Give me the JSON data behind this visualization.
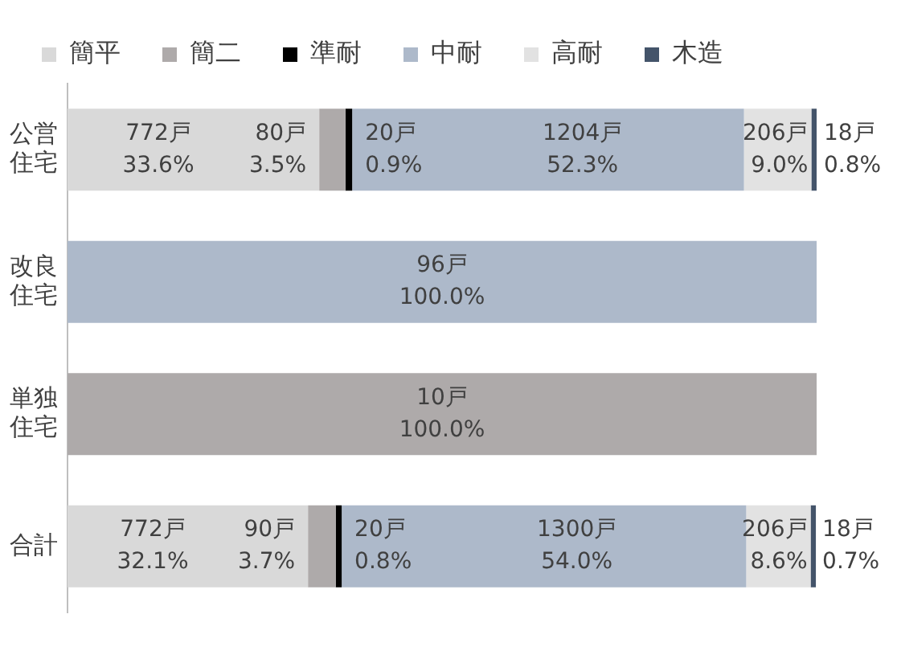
{
  "chart_data": {
    "type": "bar",
    "orientation": "horizontal",
    "stacked": true,
    "categories": [
      "公営住宅",
      "改良住宅",
      "単独住宅",
      "合計"
    ],
    "xlim": [
      0,
      100
    ],
    "tick_labels": "y",
    "grid": false,
    "legend": "top",
    "series": [
      {
        "name": "簡平",
        "color": "#d9d9d9",
        "values": [
          33.6,
          null,
          null,
          32.1
        ],
        "value_labels": [
          "772戸\n33.6%",
          null,
          null,
          "772戸\n32.1%"
        ]
      },
      {
        "name": "簡二",
        "color": "#aeaaaa",
        "values": [
          3.5,
          null,
          100.0,
          3.7
        ],
        "value_labels": [
          "80戸\n3.5%",
          null,
          "10戸\n100.0%",
          "90戸\n3.7%"
        ]
      },
      {
        "name": "準耐",
        "color": "#000000",
        "values": [
          0.9,
          null,
          null,
          0.8
        ],
        "value_labels": [
          "20戸\n0.9%",
          null,
          null,
          "20戸\n0.8%"
        ]
      },
      {
        "name": "中耐",
        "color": "#adb9ca",
        "values": [
          52.3,
          100.0,
          null,
          54.0
        ],
        "value_labels": [
          "1204戸\n52.3%",
          "96戸\n100.0%",
          null,
          "1300戸\n54.0%"
        ]
      },
      {
        "name": "高耐",
        "color": "#e2e2e2",
        "values": [
          9.0,
          null,
          null,
          8.6
        ],
        "value_labels": [
          "206戸\n9.0%",
          null,
          null,
          "206戸\n8.6%"
        ]
      },
      {
        "name": "木造",
        "color": "#44546a",
        "values": [
          0.8,
          null,
          null,
          0.7
        ],
        "value_labels": [
          "18戸\n0.8%",
          null,
          null,
          "18戸\n0.7%"
        ]
      }
    ]
  }
}
